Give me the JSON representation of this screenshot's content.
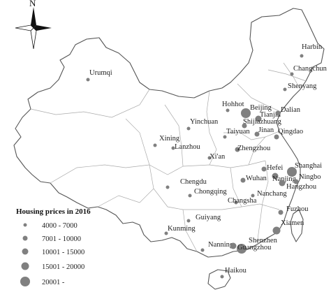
{
  "map": {
    "north_label": "N",
    "legend": {
      "title": "Housing prices in 2016",
      "classes": [
        "4000 - 7000",
        "7001 - 10000",
        "10001 - 15000",
        "15001 - 20000",
        "20001 -"
      ]
    },
    "dot_color": "#808080",
    "cities": [
      {
        "name": "Harbin",
        "price_class": 0
      },
      {
        "name": "Changchun",
        "price_class": 0
      },
      {
        "name": "Shenyang",
        "price_class": 0
      },
      {
        "name": "Urumqi",
        "price_class": 0
      },
      {
        "name": "Beijing",
        "price_class": 4
      },
      {
        "name": "Tianjin",
        "price_class": 2
      },
      {
        "name": "Dalian",
        "price_class": 1
      },
      {
        "name": "Hohhot",
        "price_class": 0
      },
      {
        "name": "Shijiazhuang",
        "price_class": 1
      },
      {
        "name": "Yinchuan",
        "price_class": 0
      },
      {
        "name": "Taiyuan",
        "price_class": 0
      },
      {
        "name": "Jinan",
        "price_class": 1
      },
      {
        "name": "Qingdao",
        "price_class": 1
      },
      {
        "name": "Xining",
        "price_class": 0
      },
      {
        "name": "Lanzhou",
        "price_class": 0
      },
      {
        "name": "Zhengzhou",
        "price_class": 1
      },
      {
        "name": "Xi'an",
        "price_class": 0
      },
      {
        "name": "Hefei",
        "price_class": 1
      },
      {
        "name": "Shanghai",
        "price_class": 4
      },
      {
        "name": "Nanjing",
        "price_class": 2
      },
      {
        "name": "Ningbo",
        "price_class": 1
      },
      {
        "name": "Hangzhou",
        "price_class": 2
      },
      {
        "name": "Chengdu",
        "price_class": 0
      },
      {
        "name": "Wuhan",
        "price_class": 1
      },
      {
        "name": "Chongqing",
        "price_class": 0
      },
      {
        "name": "Nanchang",
        "price_class": 0
      },
      {
        "name": "Changsha",
        "price_class": 0
      },
      {
        "name": "Fuzhou",
        "price_class": 1
      },
      {
        "name": "Guiyang",
        "price_class": 0
      },
      {
        "name": "Xiamen",
        "price_class": 3
      },
      {
        "name": "Kunming",
        "price_class": 0
      },
      {
        "name": "Nanning",
        "price_class": 0
      },
      {
        "name": "Shenzhen",
        "price_class": 4
      },
      {
        "name": "Guangzhou",
        "price_class": 2
      },
      {
        "name": "Haikou",
        "price_class": 0
      }
    ]
  }
}
